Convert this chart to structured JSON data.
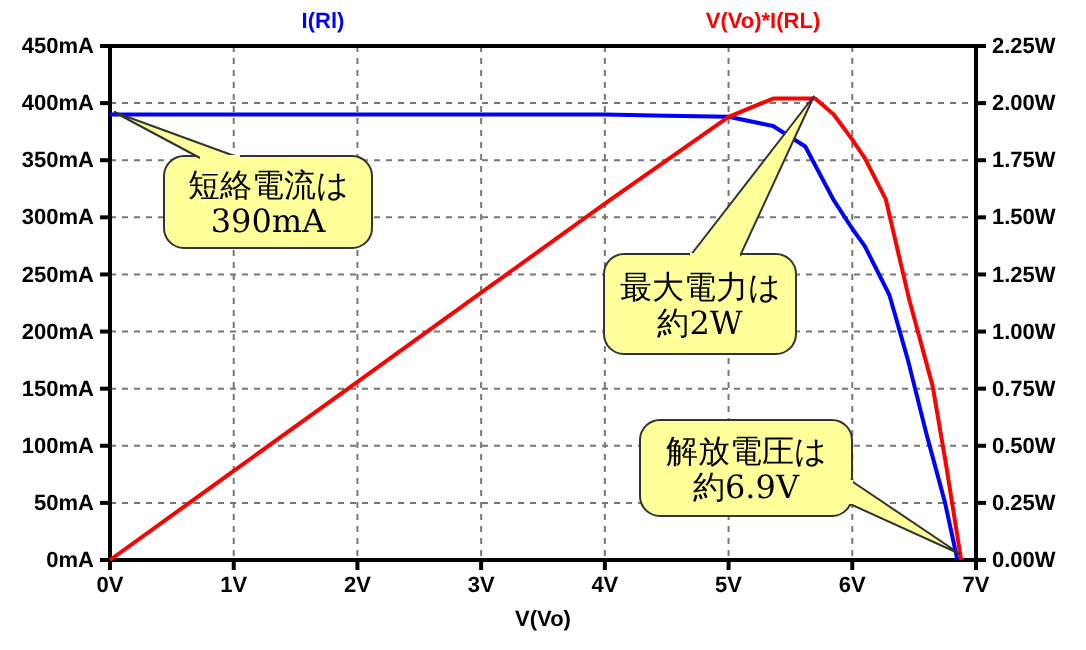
{
  "chart_data": {
    "type": "line",
    "xlabel": "V(Vo)",
    "x": [
      0,
      1,
      2,
      3,
      4,
      4.5,
      5,
      5.36,
      5.62,
      5.85,
      6.0,
      6.1,
      6.3,
      6.45,
      6.6,
      6.75,
      6.85
    ],
    "series": [
      {
        "name": "I(Rl)",
        "color": "#0000ff",
        "values": [
          390,
          390,
          390,
          390,
          390,
          389,
          388,
          380,
          362,
          315,
          290,
          275,
          232,
          175,
          110,
          50,
          0
        ]
      },
      {
        "name": "V(Vo)*I(RL)",
        "color": "#ff0000",
        "axis": "y2",
        "x": [
          0,
          1,
          2,
          3,
          4,
          5,
          5.36,
          5.7,
          5.85,
          6.0,
          6.1,
          6.27,
          6.46,
          6.65,
          6.76,
          6.88
        ],
        "values": [
          0,
          0.39,
          0.78,
          1.17,
          1.56,
          1.94,
          2.02,
          2.02,
          1.95,
          1.84,
          1.76,
          1.58,
          1.14,
          0.76,
          0.41,
          0
        ]
      }
    ],
    "xlim": [
      0,
      7
    ],
    "xticks": [
      {
        "value": 0,
        "label": "0V"
      },
      {
        "value": 1,
        "label": "1V"
      },
      {
        "value": 2,
        "label": "2V"
      },
      {
        "value": 3,
        "label": "3V"
      },
      {
        "value": 4,
        "label": "4V"
      },
      {
        "value": 5,
        "label": "5V"
      },
      {
        "value": 6,
        "label": "6V"
      },
      {
        "value": 7,
        "label": "7V"
      }
    ],
    "ylim": [
      0,
      450
    ],
    "yticks": [
      {
        "value": 0,
        "label": "0mA"
      },
      {
        "value": 50,
        "label": "50mA"
      },
      {
        "value": 100,
        "label": "100mA"
      },
      {
        "value": 150,
        "label": "150mA"
      },
      {
        "value": 200,
        "label": "200mA"
      },
      {
        "value": 250,
        "label": "250mA"
      },
      {
        "value": 300,
        "label": "300mA"
      },
      {
        "value": 350,
        "label": "350mA"
      },
      {
        "value": 400,
        "label": "400mA"
      },
      {
        "value": 450,
        "label": "450mA"
      }
    ],
    "y2lim": [
      0,
      2.25
    ],
    "y2ticks": [
      {
        "value": 0,
        "label": "0.00W"
      },
      {
        "value": 0.25,
        "label": "0.25W"
      },
      {
        "value": 0.5,
        "label": "0.50W"
      },
      {
        "value": 0.75,
        "label": "0.75W"
      },
      {
        "value": 1,
        "label": "1.00W"
      },
      {
        "value": 1.25,
        "label": "1.25W"
      },
      {
        "value": 1.5,
        "label": "1.50W"
      },
      {
        "value": 1.75,
        "label": "1.75W"
      },
      {
        "value": 2,
        "label": "2.00W"
      },
      {
        "value": 2.25,
        "label": "2.25W"
      }
    ],
    "grid": true,
    "line_style": "solid",
    "legend": "top",
    "annotations": [
      "短絡電流は390mA",
      "最大電力は約2W",
      "解放電圧は約6.9V"
    ]
  }
}
